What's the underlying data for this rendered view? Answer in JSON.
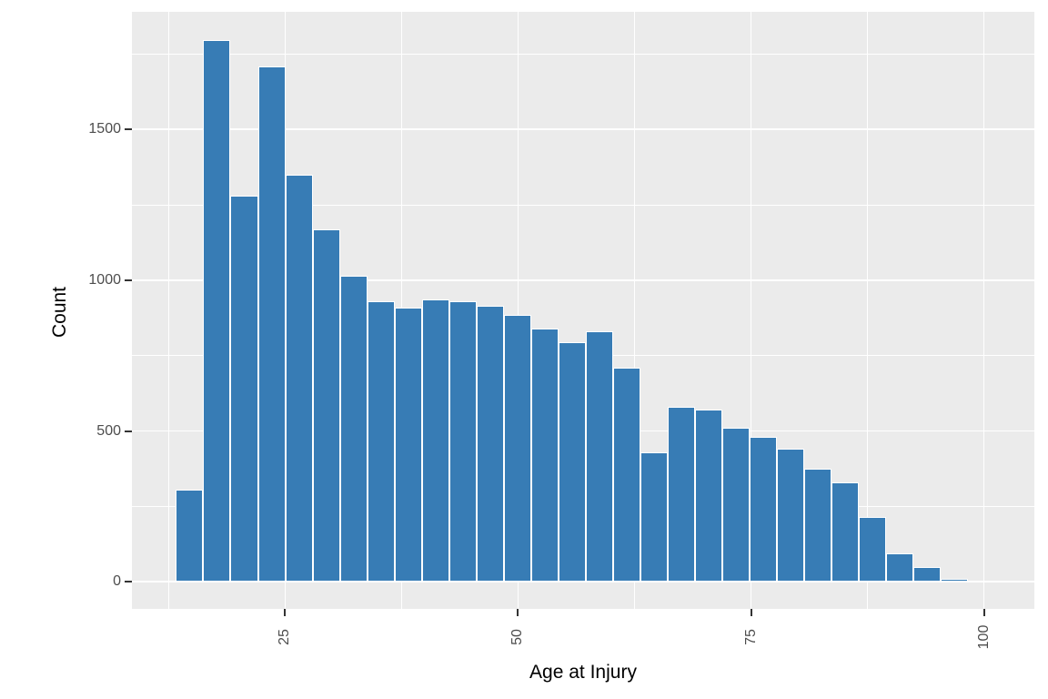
{
  "chart_data": {
    "type": "bar",
    "subtype": "histogram",
    "title": "",
    "xlabel": "Age at Injury",
    "ylabel": "Count",
    "bin_start": 13.3,
    "bin_width": 2.93,
    "counts": [
      305,
      1795,
      1280,
      1710,
      1350,
      1170,
      1015,
      930,
      910,
      935,
      930,
      915,
      885,
      840,
      795,
      830,
      710,
      430,
      580,
      570,
      510,
      480,
      440,
      375,
      330,
      215,
      95,
      48,
      10,
      3
    ],
    "x_ticks": [
      25,
      50,
      75,
      100
    ],
    "x_tick_labels": [
      "25",
      "50",
      "75",
      "100"
    ],
    "y_ticks": [
      0,
      500,
      1000,
      1500
    ],
    "y_tick_labels": [
      "0",
      "500",
      "1000",
      "1500"
    ],
    "x_minor_ticks": [
      12.5,
      37.5,
      62.5,
      87.5
    ],
    "y_minor_ticks": [
      250,
      750,
      1250,
      1750
    ],
    "xlim": [
      8.57,
      105.4
    ],
    "ylim": [
      -90,
      1890
    ],
    "legend": null,
    "grid": "on",
    "colors": {
      "bar_fill": "#377CB5",
      "bar_outline": "#FFFFFF",
      "panel_background": "#EBEBEB",
      "gridline": "#FFFFFF",
      "tick_label": "#4D4D4D",
      "tick_mark": "#333333",
      "axis_title": "#000000",
      "page_background": "#FFFFFF"
    }
  }
}
